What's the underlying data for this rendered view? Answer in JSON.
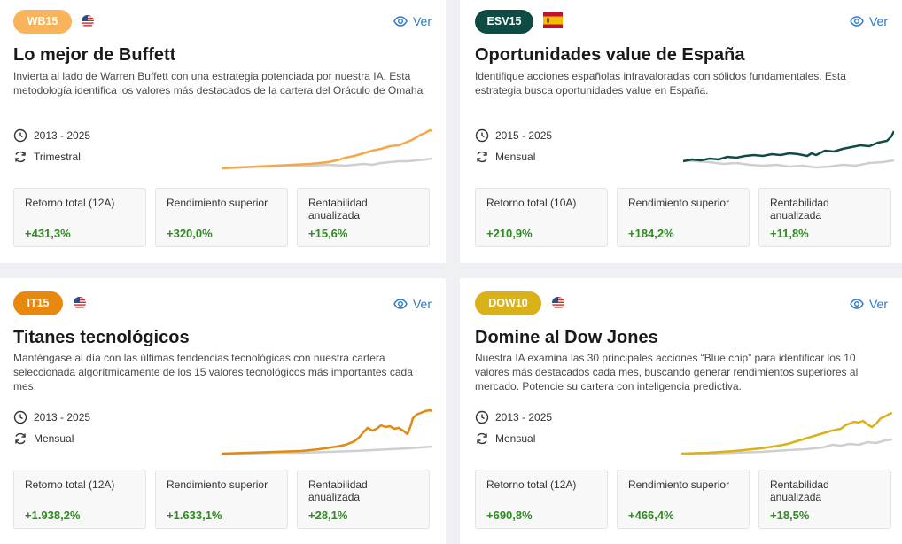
{
  "cards": [
    {
      "badge": "WB15",
      "badge_color": "#f7b45a",
      "flag": "us-flag-icon",
      "view_label": "Ver",
      "title": "Lo mejor de Buffett",
      "description": "Invierta al lado de Warren Buffett con una estrategia potenciada por nuestra IA. Esta metodología identifica los valores más destacados de la cartera del Oráculo de Omaha",
      "period": "2013 - 2025",
      "frequency": "Trimestral",
      "line_color": "#f4a84a",
      "stats": [
        {
          "label": "Retorno total (12A)",
          "value": "+431,3%"
        },
        {
          "label": "Rendimiento superior",
          "value": "+320,0%"
        },
        {
          "label": "Rentabilidad anualizada",
          "value": "+15,6%"
        }
      ]
    },
    {
      "badge": "ESV15",
      "badge_color": "#0f4b43",
      "flag": "spain-flag-icon",
      "view_label": "Ver",
      "title": "Oportunidades value de España",
      "description": "Identifique acciones españolas infravaloradas con sólidos fundamentales. Esta estrategia busca oportunidades value en España.",
      "period": "2015 - 2025",
      "frequency": "Mensual",
      "line_color": "#0f4b43",
      "stats": [
        {
          "label": "Retorno total (10A)",
          "value": "+210,9%"
        },
        {
          "label": "Rendimiento superior",
          "value": "+184,2%"
        },
        {
          "label": "Rentabilidad anualizada",
          "value": "+11,8%"
        }
      ]
    },
    {
      "badge": "IT15",
      "badge_color": "#e8880f",
      "flag": "us-flag-icon",
      "view_label": "Ver",
      "title": "Titanes tecnológicos",
      "description": "Manténgase al día con las últimas tendencias tecnológicas con nuestra cartera seleccionada algorítmicamente de los 15 valores tecnológicos más importantes cada mes.",
      "period": "2013 - 2025",
      "frequency": "Mensual",
      "line_color": "#e08a16",
      "stats": [
        {
          "label": "Retorno total (12A)",
          "value": "+1.938,2%"
        },
        {
          "label": "Rendimiento superior",
          "value": "+1.633,1%"
        },
        {
          "label": "Rentabilidad anualizada",
          "value": "+28,1%"
        }
      ]
    },
    {
      "badge": "DOW10",
      "badge_color": "#d9b21a",
      "flag": "us-flag-icon",
      "view_label": "Ver",
      "title": "Domine al Dow Jones",
      "description": "Nuestra IA examina las 30 principales acciones “Blue chip” para identificar los 10 valores más destacados cada mes, buscando generar rendimientos superiores al mercado. Potencie su cartera con inteligencia predictiva.",
      "period": "2013 - 2025",
      "frequency": "Mensual",
      "line_color": "#d9b21a",
      "stats": [
        {
          "label": "Retorno total (12A)",
          "value": "+690,8%"
        },
        {
          "label": "Rendimiento superior",
          "value": "+466,4%"
        },
        {
          "label": "Rentabilidad anualizada",
          "value": "+18,5%"
        }
      ]
    }
  ]
}
